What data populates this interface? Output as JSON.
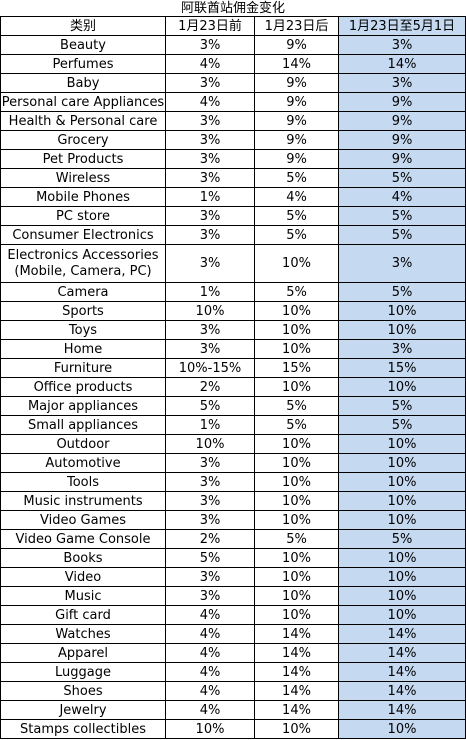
{
  "title": "阿联酋站佣金变化",
  "headers": [
    "类别",
    "1月23日前",
    "1月23日后",
    "1月23日至5月1日"
  ],
  "rows": [
    [
      "Beauty",
      "3%",
      "9%",
      "3%"
    ],
    [
      "Perfumes",
      "4%",
      "14%",
      "14%"
    ],
    [
      "Baby",
      "3%",
      "9%",
      "3%"
    ],
    [
      "Personal care Appliances",
      "4%",
      "9%",
      "9%"
    ],
    [
      "Health & Personal care",
      "3%",
      "9%",
      "9%"
    ],
    [
      "Grocery",
      "3%",
      "9%",
      "9%"
    ],
    [
      "Pet Products",
      "3%",
      "9%",
      "9%"
    ],
    [
      "Wireless",
      "3%",
      "5%",
      "5%"
    ],
    [
      "Mobile Phones",
      "1%",
      "4%",
      "4%"
    ],
    [
      "PC store",
      "3%",
      "5%",
      "5%"
    ],
    [
      "Consumer Electronics",
      "3%",
      "5%",
      "5%"
    ],
    [
      "Electronics Accessories (Mobile, Camera, PC)",
      "3%",
      "10%",
      "3%"
    ],
    [
      "Camera",
      "1%",
      "5%",
      "5%"
    ],
    [
      "Sports",
      "10%",
      "10%",
      "10%"
    ],
    [
      "Toys",
      "3%",
      "10%",
      "10%"
    ],
    [
      "Home",
      "3%",
      "10%",
      "3%"
    ],
    [
      "Furniture",
      "10%-15%",
      "15%",
      "15%"
    ],
    [
      "Office products",
      "2%",
      "10%",
      "10%"
    ],
    [
      "Major appliances",
      "5%",
      "5%",
      "5%"
    ],
    [
      "Small appliances",
      "1%",
      "5%",
      "5%"
    ],
    [
      "Outdoor",
      "10%",
      "10%",
      "10%"
    ],
    [
      "Automotive",
      "3%",
      "10%",
      "10%"
    ],
    [
      "Tools",
      "3%",
      "10%",
      "10%"
    ],
    [
      "Music instruments",
      "3%",
      "10%",
      "10%"
    ],
    [
      "Video Games",
      "3%",
      "10%",
      "10%"
    ],
    [
      "Video Game Console",
      "2%",
      "5%",
      "5%"
    ],
    [
      "Books",
      "5%",
      "10%",
      "10%"
    ],
    [
      "Video",
      "3%",
      "10%",
      "10%"
    ],
    [
      "Music",
      "3%",
      "10%",
      "10%"
    ],
    [
      "Gift card",
      "4%",
      "10%",
      "10%"
    ],
    [
      "Watches",
      "4%",
      "14%",
      "14%"
    ],
    [
      "Apparel",
      "4%",
      "14%",
      "14%"
    ],
    [
      "Luggage",
      "4%",
      "14%",
      "14%"
    ],
    [
      "Shoes",
      "4%",
      "14%",
      "14%"
    ],
    [
      "Jewelry",
      "4%",
      "14%",
      "14%"
    ],
    [
      "Stamps collectibles",
      "10%",
      "10%",
      "10%"
    ]
  ],
  "colors": {
    "highlight_column": "#c5d9f1",
    "grid": "#000000"
  }
}
